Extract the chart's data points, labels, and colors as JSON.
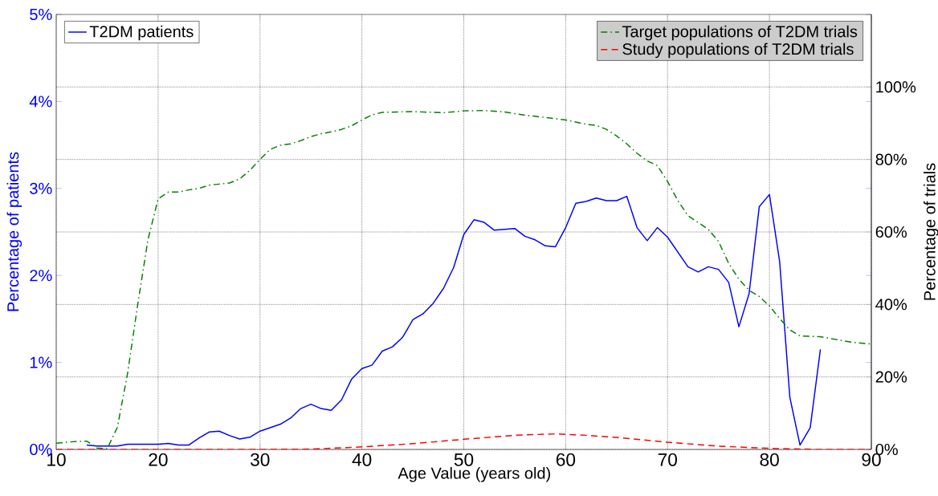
{
  "chart_data": {
    "type": "line",
    "xlabel": "Age Value (years old)",
    "ylabel": "Percentage of patients",
    "y2label": "Percentage of trials",
    "xlim": [
      10,
      90
    ],
    "xticks": [
      10,
      20,
      30,
      40,
      50,
      60,
      70,
      80,
      90
    ],
    "ylim": [
      0,
      5
    ],
    "yticks": [
      {
        "value": 0,
        "label": "0%"
      },
      {
        "value": 1,
        "label": "1%"
      },
      {
        "value": 2,
        "label": "2%"
      },
      {
        "value": 3,
        "label": "3%"
      },
      {
        "value": 4,
        "label": "4%"
      },
      {
        "value": 5,
        "label": "5%"
      }
    ],
    "y2lim": [
      0,
      120
    ],
    "y2ticks": [
      {
        "value": 0,
        "label": "0%"
      },
      {
        "value": 20,
        "label": "20%"
      },
      {
        "value": 40,
        "label": "40%"
      },
      {
        "value": 60,
        "label": "60%"
      },
      {
        "value": 80,
        "label": "80%"
      },
      {
        "value": 100,
        "label": "100%"
      }
    ],
    "grid": true,
    "legend": "top",
    "marker": "none",
    "series": [
      {
        "name": "T2DM patients",
        "color": "#0000ff",
        "line_style": "solid",
        "x": [
          13,
          14,
          15,
          16,
          17,
          18,
          19,
          20,
          21,
          22,
          23,
          24,
          25,
          26,
          27,
          28,
          29,
          30,
          31,
          32,
          33,
          34,
          35,
          36,
          37,
          38,
          39,
          40,
          41,
          42,
          43,
          44,
          45,
          46,
          47,
          48,
          49,
          50,
          51,
          52,
          53,
          54,
          55,
          56,
          57,
          58,
          59,
          60,
          61,
          62,
          63,
          64,
          65,
          66,
          67,
          68,
          69,
          70,
          71,
          72,
          73,
          74,
          75,
          76,
          77,
          78,
          79,
          80,
          81,
          82,
          83,
          84,
          85
        ],
        "values": [
          0.05,
          0.04,
          0.04,
          0.04,
          0.06,
          0.06,
          0.06,
          0.06,
          0.07,
          0.05,
          0.05,
          0.13,
          0.2,
          0.21,
          0.16,
          0.12,
          0.14,
          0.21,
          0.25,
          0.29,
          0.36,
          0.47,
          0.52,
          0.47,
          0.45,
          0.57,
          0.81,
          0.93,
          0.97,
          1.13,
          1.18,
          1.29,
          1.49,
          1.56,
          1.68,
          1.85,
          2.09,
          2.47,
          2.64,
          2.61,
          2.52,
          2.53,
          2.54,
          2.45,
          2.41,
          2.34,
          2.33,
          2.55,
          2.83,
          2.85,
          2.89,
          2.86,
          2.86,
          2.91,
          2.55,
          2.4,
          2.55,
          2.44,
          2.27,
          2.1,
          2.04,
          2.1,
          2.07,
          1.92,
          1.41,
          1.79,
          2.79,
          2.93,
          2.16,
          0.6,
          0.05,
          0.25,
          1.15
        ]
      },
      {
        "name": "Target populations of T2DM trials",
        "color": "#008000",
        "line_style": "dashdot",
        "axis": "y2",
        "x": [
          10,
          11,
          12,
          13,
          14,
          15,
          16,
          17,
          18,
          19,
          20,
          21,
          22,
          23,
          24,
          25,
          26,
          27,
          28,
          29,
          30,
          31,
          32,
          33,
          34,
          35,
          36,
          37,
          38,
          39,
          40,
          41,
          42,
          45,
          48,
          50,
          52,
          54,
          56,
          58,
          60,
          62,
          63,
          64,
          65,
          66,
          67,
          68,
          69,
          70,
          71,
          72,
          73,
          74,
          75,
          76,
          77,
          78,
          79,
          80,
          81,
          82,
          83,
          85,
          86,
          88,
          90
        ],
        "values": [
          1.7,
          2,
          2.2,
          2.3,
          0.4,
          0.2,
          6.1,
          20.9,
          40,
          57.8,
          69.1,
          71,
          71,
          71.6,
          72,
          72.9,
          73.2,
          73.5,
          74.6,
          77,
          80,
          82.8,
          83.9,
          84.3,
          85.2,
          86.3,
          87.1,
          87.6,
          88.3,
          89.3,
          90.9,
          92.3,
          93,
          93.2,
          92.9,
          93.4,
          93.5,
          93.1,
          92.2,
          91.6,
          90.9,
          89.7,
          89.4,
          88.3,
          86.5,
          84.3,
          81.7,
          79.6,
          78.3,
          73.9,
          68.7,
          64.5,
          62.6,
          60.7,
          57.4,
          51.3,
          47,
          43.9,
          42.2,
          39.6,
          36.1,
          33,
          31.3,
          31.1,
          30.6,
          29.6,
          29.1
        ]
      },
      {
        "name": "Study populations of T2DM trials",
        "color": "#ff0000",
        "line_style": "dashed",
        "axis": "y2",
        "x": [
          10,
          20,
          30,
          35,
          40,
          45,
          50,
          55,
          59,
          62,
          65,
          70,
          75,
          80,
          85,
          90
        ],
        "values": [
          0,
          0,
          0,
          0.1,
          0.7,
          1.6,
          2.8,
          3.9,
          4.3,
          3.9,
          3.3,
          2,
          0.9,
          0.3,
          0,
          0
        ]
      }
    ]
  }
}
